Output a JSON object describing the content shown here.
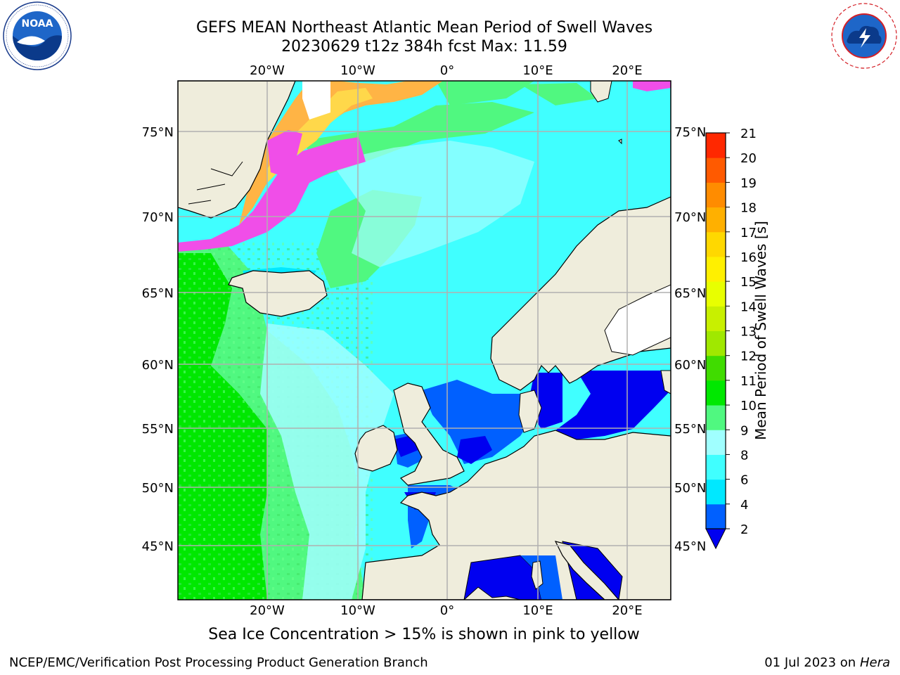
{
  "header": {
    "title_line1": "GEFS MEAN Northeast Atlantic Mean Period of Swell Waves",
    "title_line2": "20230629 t12z 384h fcst   Max: 11.59"
  },
  "logos": {
    "left": {
      "name": "NOAA",
      "ring_text": "NATIONAL OCEANIC AND ATMOSPHERIC ADMINISTRATION · U.S. DEPARTMENT OF COMMERCE ·"
    },
    "right": {
      "name": "NATIONAL WEATHER SERVICE"
    }
  },
  "map": {
    "top_lon_labels": [
      "20°W",
      "10°W",
      "0°",
      "10°E",
      "20°E"
    ],
    "bottom_lon_labels": [
      "20°W",
      "10°W",
      "0°",
      "10°E",
      "20°E"
    ],
    "lat_labels": [
      "75°N",
      "70°N",
      "65°N",
      "60°N",
      "55°N",
      "50°N",
      "45°N"
    ],
    "colors": {
      "land": "#efeddc",
      "grid": "#b0b0b0",
      "coast": "#000000",
      "ice_pink": "#f04ee8",
      "ice_orange": "#ffb445",
      "ice_yellow": "#ffd84a"
    }
  },
  "colorbar": {
    "label": "Mean Period of Swell Waves [s]",
    "ticks": [
      "2",
      "4",
      "6",
      "8",
      "9",
      "10",
      "11",
      "12",
      "13",
      "14",
      "15",
      "16",
      "17",
      "18",
      "19",
      "20",
      "21"
    ],
    "colors": [
      "#0060ff",
      "#00e8ff",
      "#40ffff",
      "#a0ffff",
      "#50f880",
      "#00e800",
      "#40dc00",
      "#a0e800",
      "#c8f000",
      "#e8ff00",
      "#fff000",
      "#ffd800",
      "#ffb000",
      "#ff8c00",
      "#ff5a00",
      "#ff2800",
      "#ff0000"
    ],
    "below_color": "#0000f0"
  },
  "footer": {
    "note": "Sea Ice Concentration > 15% is shown in pink to yellow",
    "left": "NCEP/EMC/Verification Post Processing Product Generation Branch",
    "right_date": "01 Jul 2023 on ",
    "right_host": "Hera"
  }
}
